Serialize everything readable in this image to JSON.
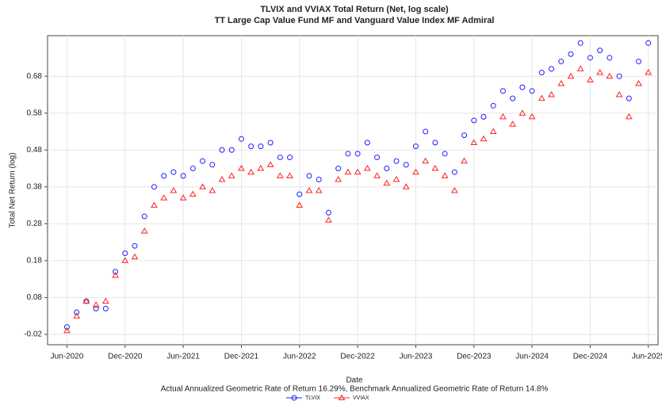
{
  "chart_data": {
    "type": "scatter",
    "title": "TLVIX and VVIAX Total Return (Net, log scale)",
    "subtitle": "TT Large Cap Value Fund MF and Vanguard Value Index MF Admiral",
    "xlabel": "Date",
    "ylabel": "Total Net Return (log)",
    "caption": "Actual Annualized Geometric Rate of Return 16.29%, Benchmark Annualized Geometric Rate of Return 14.8%",
    "x": [
      "2020-06",
      "2020-07",
      "2020-08",
      "2020-09",
      "2020-10",
      "2020-11",
      "2020-12",
      "2021-01",
      "2021-02",
      "2021-03",
      "2021-04",
      "2021-05",
      "2021-06",
      "2021-07",
      "2021-08",
      "2021-09",
      "2021-10",
      "2021-11",
      "2021-12",
      "2022-01",
      "2022-02",
      "2022-03",
      "2022-04",
      "2022-05",
      "2022-06",
      "2022-07",
      "2022-08",
      "2022-09",
      "2022-10",
      "2022-11",
      "2022-12",
      "2023-01",
      "2023-02",
      "2023-03",
      "2023-04",
      "2023-05",
      "2023-06",
      "2023-07",
      "2023-08",
      "2023-09",
      "2023-10",
      "2023-11",
      "2023-12",
      "2024-01",
      "2024-02",
      "2024-03",
      "2024-04",
      "2024-05",
      "2024-06",
      "2024-07",
      "2024-08",
      "2024-09",
      "2024-10",
      "2024-11",
      "2024-12",
      "2025-01",
      "2025-02",
      "2025-03",
      "2025-04",
      "2025-05",
      "2025-06"
    ],
    "series": [
      {
        "name": "TLVIX",
        "color": "#1f1fff",
        "marker": "circle",
        "values": [
          0.0,
          0.04,
          0.07,
          0.05,
          0.05,
          0.15,
          0.2,
          0.22,
          0.3,
          0.38,
          0.41,
          0.42,
          0.41,
          0.43,
          0.45,
          0.44,
          0.48,
          0.48,
          0.51,
          0.49,
          0.49,
          0.5,
          0.46,
          0.46,
          0.36,
          0.41,
          0.4,
          0.31,
          0.43,
          0.47,
          0.47,
          0.5,
          0.46,
          0.43,
          0.45,
          0.44,
          0.49,
          0.53,
          0.5,
          0.47,
          0.42,
          0.52,
          0.56,
          0.57,
          0.6,
          0.64,
          0.62,
          0.65,
          0.64,
          0.69,
          0.7,
          0.72,
          0.74,
          0.77,
          0.73,
          0.75,
          0.73,
          0.68,
          0.62,
          0.72,
          0.77
        ]
      },
      {
        "name": "VVIAX",
        "color": "#ff2020",
        "marker": "triangle",
        "values": [
          -0.01,
          0.03,
          0.07,
          0.06,
          0.07,
          0.14,
          0.18,
          0.19,
          0.26,
          0.33,
          0.35,
          0.37,
          0.35,
          0.36,
          0.38,
          0.37,
          0.4,
          0.41,
          0.43,
          0.42,
          0.43,
          0.44,
          0.41,
          0.41,
          0.33,
          0.37,
          0.37,
          0.29,
          0.4,
          0.42,
          0.42,
          0.43,
          0.41,
          0.39,
          0.4,
          0.38,
          0.42,
          0.45,
          0.43,
          0.41,
          0.37,
          0.45,
          0.5,
          0.51,
          0.53,
          0.57,
          0.55,
          0.58,
          0.57,
          0.62,
          0.63,
          0.66,
          0.68,
          0.7,
          0.67,
          0.69,
          0.68,
          0.63,
          0.57,
          0.66,
          0.69
        ]
      }
    ],
    "xlim": [
      "2020-04",
      "2025-07"
    ],
    "xticks": [
      {
        "value": "2020-06",
        "label": "Jun-2020"
      },
      {
        "value": "2020-12",
        "label": "Dec-2020"
      },
      {
        "value": "2021-06",
        "label": "Jun-2021"
      },
      {
        "value": "2021-12",
        "label": "Dec-2021"
      },
      {
        "value": "2022-06",
        "label": "Jun-2022"
      },
      {
        "value": "2022-12",
        "label": "Dec-2022"
      },
      {
        "value": "2023-06",
        "label": "Jun-2023"
      },
      {
        "value": "2023-12",
        "label": "Dec-2023"
      },
      {
        "value": "2024-06",
        "label": "Jun-2024"
      },
      {
        "value": "2024-12",
        "label": "Dec-2024"
      },
      {
        "value": "2025-06",
        "label": "Jun-2025"
      }
    ],
    "ylim": [
      -0.048,
      0.79
    ],
    "yticks": [
      -0.02,
      0.08,
      0.18,
      0.28,
      0.38,
      0.48,
      0.58,
      0.68
    ],
    "grid": true,
    "legend": "bottom"
  }
}
